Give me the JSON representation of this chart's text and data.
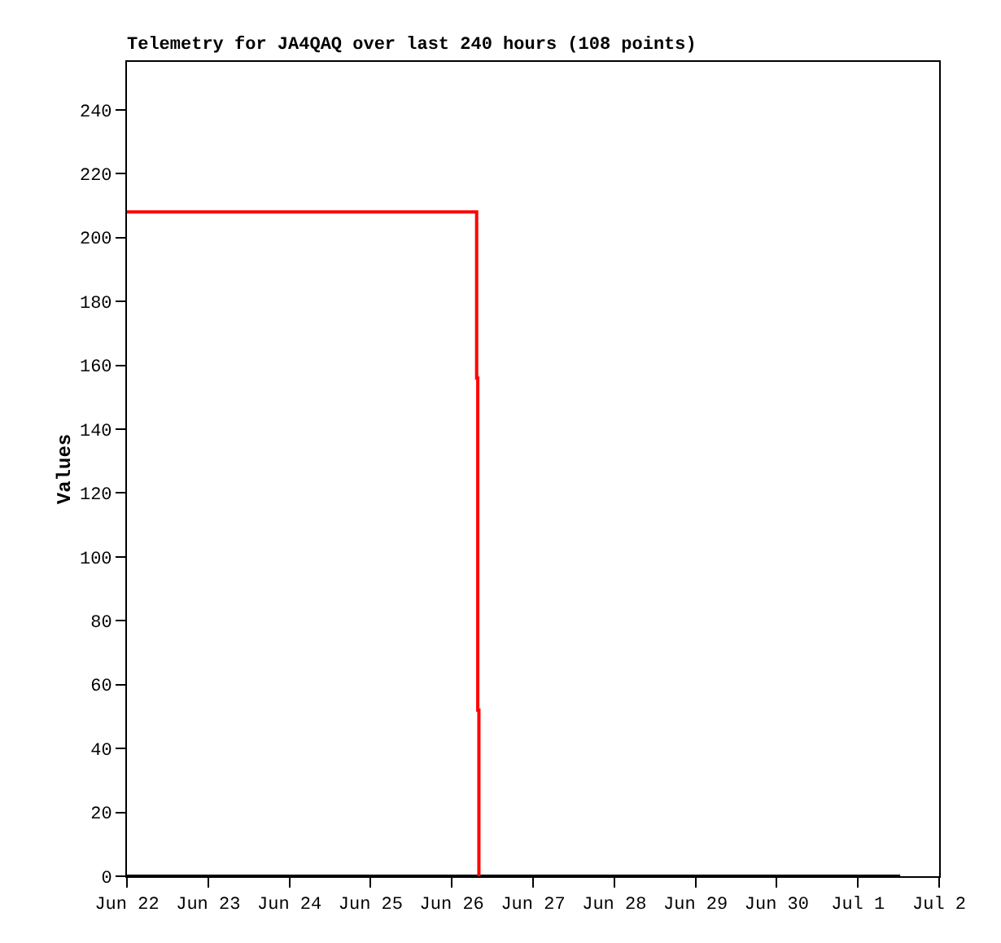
{
  "chart_data": {
    "type": "step",
    "title": "Telemetry for JA4QAQ over last 240 hours (108 points)",
    "ylabel": "Values",
    "series": [
      {
        "color": "#000000",
        "x": [
          "--06-22T00:00",
          "--07-01T12:30"
        ],
        "values": [
          0,
          0
        ]
      },
      {
        "color": "#ff0000",
        "x": [
          "--06-22T00:00",
          "--06-26T07:20",
          "--06-26T07:40",
          "--06-26T08:00"
        ],
        "values": [
          208,
          156,
          52,
          0
        ]
      }
    ],
    "xlim": [
      "--06-22",
      "--07-02"
    ],
    "xticks": [
      {
        "value": "--06-22",
        "label": "Jun 22"
      },
      {
        "value": "--06-23",
        "label": "Jun 23"
      },
      {
        "value": "--06-24",
        "label": "Jun 24"
      },
      {
        "value": "--06-25",
        "label": "Jun 25"
      },
      {
        "value": "--06-26",
        "label": "Jun 26"
      },
      {
        "value": "--06-27",
        "label": "Jun 27"
      },
      {
        "value": "--06-28",
        "label": "Jun 28"
      },
      {
        "value": "--06-29",
        "label": "Jun 29"
      },
      {
        "value": "--06-30",
        "label": "Jun 30"
      },
      {
        "value": "--07-01",
        "label": "Jul 1"
      },
      {
        "value": "--07-02",
        "label": "Jul 2"
      }
    ],
    "ylim": [
      0,
      255
    ],
    "yticks": [
      0,
      20,
      40,
      60,
      80,
      100,
      120,
      140,
      160,
      180,
      200,
      220,
      240
    ],
    "grid": false
  }
}
